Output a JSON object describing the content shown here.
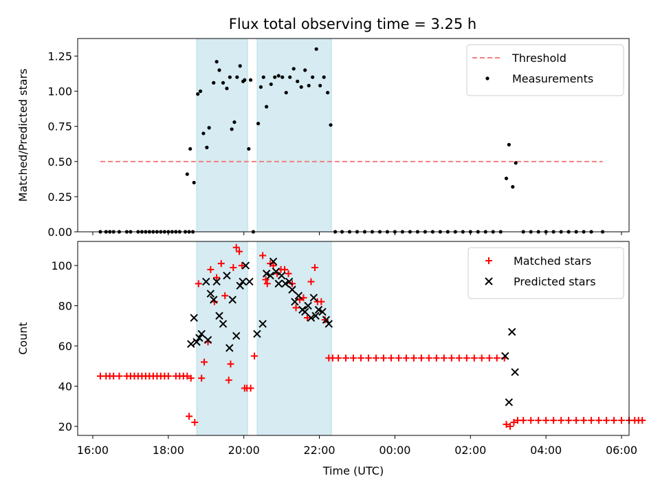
{
  "figure": {
    "title": "Flux total observing time = 3.25 h"
  },
  "chart_data": [
    {
      "type": "scatter",
      "panel": "top",
      "title": "Flux total observing time = 3.25 h",
      "xlabel": "",
      "ylabel": "Matched/Predicted stars",
      "x_unit": "hours since 16:00 UTC",
      "xlim": [
        -0.4,
        14.2
      ],
      "ylim": [
        0,
        1.375
      ],
      "yticks": [
        0.0,
        0.25,
        0.5,
        0.75,
        1.0,
        1.25
      ],
      "ytick_labels": [
        "0.00",
        "0.25",
        "0.50",
        "0.75",
        "1.00",
        "1.25"
      ],
      "legend_position": "top-right",
      "shaded_intervals": [
        [
          2.75,
          4.1
        ],
        [
          4.35,
          6.32
        ]
      ],
      "threshold": {
        "name": "Threshold",
        "y": 0.5,
        "x_range": [
          0.2,
          13.5
        ],
        "color": "#f08080",
        "style": "dashed"
      },
      "series": [
        {
          "name": "Measurements",
          "color": "#000000",
          "x": [
            0.2,
            0.35,
            0.45,
            0.55,
            0.7,
            0.9,
            1.0,
            1.2,
            1.3,
            1.4,
            1.5,
            1.6,
            1.7,
            1.8,
            1.9,
            2.0,
            2.1,
            2.2,
            2.3,
            2.45,
            2.55,
            2.65,
            2.5,
            2.58,
            2.68,
            2.78,
            2.85,
            2.93,
            3.02,
            3.08,
            3.2,
            3.28,
            3.35,
            3.45,
            3.55,
            3.63,
            3.68,
            3.75,
            3.82,
            3.9,
            3.98,
            4.02,
            4.13,
            4.18,
            4.25,
            4.38,
            4.45,
            4.52,
            4.6,
            4.72,
            4.82,
            4.92,
            5.02,
            5.12,
            5.22,
            5.32,
            5.42,
            5.52,
            5.62,
            5.72,
            5.82,
            5.92,
            6.02,
            6.12,
            6.22,
            6.3,
            6.42,
            6.6,
            6.8,
            7.0,
            7.2,
            7.4,
            7.6,
            7.8,
            8.0,
            8.2,
            8.4,
            8.6,
            8.8,
            9.0,
            9.2,
            9.4,
            9.6,
            9.8,
            10.0,
            10.2,
            10.4,
            10.6,
            10.8,
            10.95,
            11.02,
            11.12,
            11.2,
            11.4,
            11.6,
            11.8,
            12.0,
            12.2,
            12.4,
            12.6,
            12.8,
            13.0,
            13.2,
            13.5
          ],
          "y": [
            0,
            0,
            0,
            0,
            0,
            0,
            0,
            0,
            0,
            0,
            0,
            0,
            0,
            0,
            0,
            0,
            0,
            0,
            0,
            0,
            0,
            0,
            0.41,
            0.59,
            0.35,
            0.98,
            1.0,
            0.7,
            0.6,
            0.74,
            1.06,
            1.21,
            1.15,
            1.06,
            1.02,
            1.1,
            0.73,
            0.78,
            1.1,
            1.18,
            1.07,
            1.08,
            0.59,
            1.08,
            0,
            0.77,
            1.03,
            1.1,
            0.89,
            1.05,
            1.1,
            1.11,
            1.1,
            0.99,
            1.1,
            1.16,
            1.07,
            1.03,
            1.15,
            1.04,
            1.1,
            1.3,
            1.04,
            1.1,
            0.99,
            0.76,
            0,
            0,
            0,
            0,
            0,
            0,
            0,
            0,
            0,
            0,
            0,
            0,
            0,
            0,
            0,
            0,
            0,
            0,
            0,
            0,
            0,
            0,
            0,
            0.38,
            0.62,
            0.32,
            0.49,
            0,
            0,
            0,
            0,
            0,
            0,
            0,
            0,
            0,
            0,
            0
          ]
        }
      ]
    },
    {
      "type": "scatter",
      "panel": "bottom",
      "xlabel": "Time (UTC)",
      "ylabel": "Count",
      "x_unit": "hours since 16:00 UTC",
      "xlim": [
        -0.4,
        14.2
      ],
      "ylim": [
        15.5,
        112
      ],
      "xticks": [
        0,
        2,
        4,
        6,
        8,
        10,
        12,
        14
      ],
      "xtick_labels": [
        "16:00",
        "18:00",
        "20:00",
        "22:00",
        "00:00",
        "02:00",
        "04:00",
        "06:00"
      ],
      "yticks": [
        20,
        40,
        60,
        80,
        100
      ],
      "ytick_labels": [
        "20",
        "40",
        "60",
        "80",
        "100"
      ],
      "legend_position": "top-right",
      "shaded_intervals": [
        [
          2.75,
          4.1
        ],
        [
          4.35,
          6.32
        ]
      ],
      "series": [
        {
          "name": "Matched stars",
          "marker": "+",
          "color": "#ff0000",
          "x": [
            0.2,
            0.35,
            0.45,
            0.55,
            0.7,
            0.9,
            1.0,
            1.1,
            1.2,
            1.3,
            1.4,
            1.5,
            1.6,
            1.7,
            1.8,
            1.9,
            2.0,
            2.2,
            2.3,
            2.4,
            2.5,
            2.6,
            2.55,
            2.7,
            2.8,
            2.88,
            2.95,
            3.05,
            3.12,
            3.22,
            3.28,
            3.4,
            3.5,
            3.6,
            3.65,
            3.72,
            3.8,
            3.88,
            3.95,
            4.02,
            4.08,
            4.18,
            4.28,
            4.5,
            4.58,
            4.62,
            4.7,
            4.78,
            4.88,
            4.98,
            5.08,
            5.18,
            5.28,
            5.38,
            5.48,
            5.58,
            5.68,
            5.78,
            5.88,
            5.95,
            6.05,
            6.15,
            6.25,
            6.35,
            6.5,
            6.7,
            6.9,
            7.1,
            7.3,
            7.5,
            7.7,
            7.9,
            8.1,
            8.3,
            8.5,
            8.7,
            8.9,
            9.1,
            9.3,
            9.5,
            9.7,
            9.9,
            10.1,
            10.3,
            10.5,
            10.7,
            10.9,
            10.95,
            11.05,
            11.15,
            11.25,
            11.4,
            11.6,
            11.8,
            12.0,
            12.2,
            12.4,
            12.6,
            12.8,
            13.0,
            13.2,
            13.4,
            13.6,
            13.8,
            14.0,
            14.2,
            14.35,
            14.45,
            14.55
          ],
          "y": [
            45,
            45,
            45,
            45,
            45,
            45,
            45,
            45,
            45,
            45,
            45,
            45,
            45,
            45,
            45,
            45,
            45,
            45,
            45,
            45,
            45,
            44,
            25,
            22,
            91,
            44,
            52,
            62,
            98,
            82,
            94,
            101,
            85,
            43,
            51,
            99,
            109,
            107,
            100,
            39,
            39,
            39,
            55,
            105,
            93,
            91,
            101,
            100,
            96,
            98,
            98,
            96,
            91,
            79,
            83,
            84,
            74,
            92,
            99,
            82,
            82,
            73,
            54,
            54,
            54,
            54,
            54,
            54,
            54,
            54,
            54,
            54,
            54,
            54,
            54,
            54,
            54,
            54,
            54,
            54,
            54,
            54,
            54,
            54,
            54,
            54,
            54,
            21,
            20,
            22,
            23,
            23,
            23,
            23,
            23,
            23,
            23,
            23,
            23,
            23,
            23,
            23,
            23,
            23,
            23,
            23,
            23,
            23,
            23
          ]
        },
        {
          "name": "Predicted stars",
          "marker": "x",
          "color": "#000000",
          "x": [
            2.6,
            2.68,
            2.75,
            2.82,
            2.88,
            3.0,
            3.05,
            3.12,
            3.2,
            3.28,
            3.35,
            3.45,
            3.55,
            3.62,
            3.7,
            3.8,
            3.9,
            3.97,
            4.05,
            4.15,
            4.35,
            4.5,
            4.6,
            4.7,
            4.78,
            4.85,
            4.92,
            5.0,
            5.1,
            5.2,
            5.28,
            5.35,
            5.45,
            5.55,
            5.62,
            5.7,
            5.78,
            5.85,
            5.9,
            5.98,
            6.08,
            6.18,
            6.25,
            10.92,
            11.02,
            11.1,
            11.18
          ],
          "y": [
            61,
            74,
            62,
            64,
            66,
            92,
            63,
            86,
            83,
            92,
            75,
            71,
            95,
            59,
            83,
            65,
            90,
            92,
            100,
            92,
            66,
            71,
            96,
            95,
            102,
            97,
            91,
            95,
            91,
            92,
            88,
            82,
            85,
            78,
            77,
            80,
            74,
            84,
            75,
            78,
            77,
            73,
            71,
            55,
            32,
            67,
            47
          ]
        }
      ]
    }
  ]
}
